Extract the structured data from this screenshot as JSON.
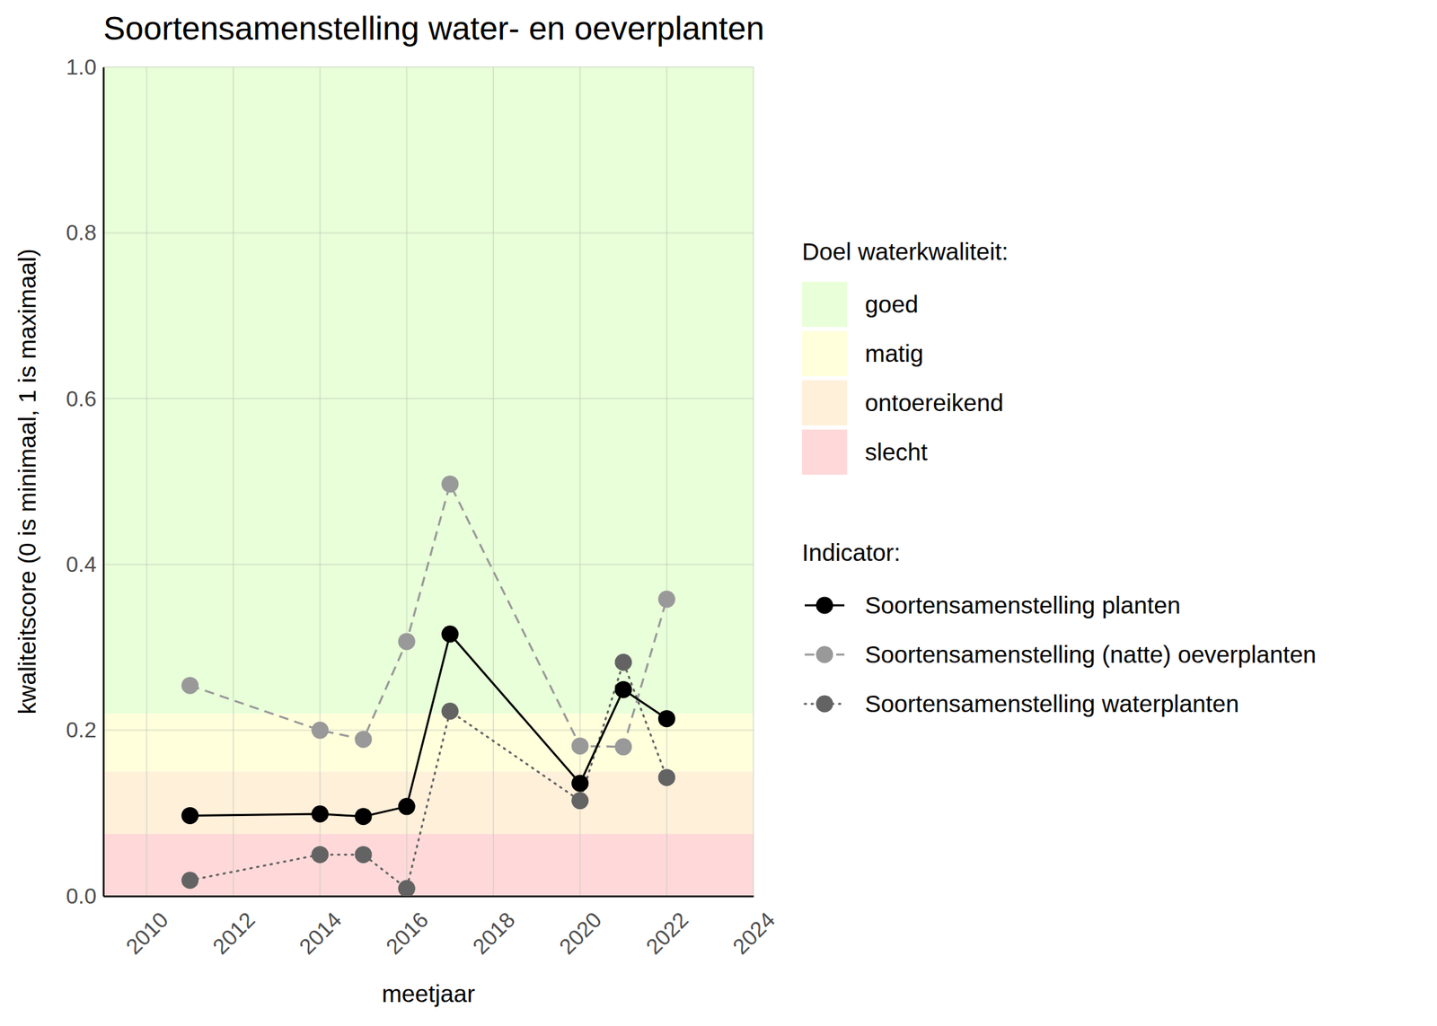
{
  "chart_data": {
    "type": "line",
    "title": "Soortensamenstelling water- en oeverplanten",
    "x_label": "meetjaar",
    "y_label": "kwaliteitscore (0 is minimaal, 1 is maximaal)",
    "x": [
      2011,
      2014,
      2015,
      2016,
      2017,
      2020,
      2021,
      2022
    ],
    "series": [
      {
        "name": "Soortensamenstelling planten",
        "color": "#000000",
        "line_style": "solid",
        "marker": "circle",
        "values": [
          0.097,
          0.099,
          0.096,
          0.108,
          0.316,
          0.136,
          0.249,
          0.214
        ]
      },
      {
        "name": "Soortensamenstelling (natte) oeverplanten",
        "color": "#999999",
        "line_style": "dashed",
        "marker": "circle",
        "values": [
          0.254,
          0.2,
          0.189,
          0.307,
          0.497,
          0.181,
          0.18,
          0.358
        ]
      },
      {
        "name": "Soortensamenstelling waterplanten",
        "color": "#636363",
        "line_style": "dotted",
        "marker": "circle",
        "values": [
          0.019,
          0.05,
          0.05,
          0.009,
          0.223,
          0.115,
          0.282,
          0.143
        ]
      }
    ],
    "legend_title": "Indicator:",
    "band_legend_title": "Doel waterkwaliteit:",
    "bands": [
      {
        "name": "goed",
        "color": "#e8ffd9",
        "from": 0.22,
        "to": 1.0
      },
      {
        "name": "matig",
        "color": "#ffffdc",
        "from": 0.15,
        "to": 0.22
      },
      {
        "name": "ontoereikend",
        "color": "#fff0da",
        "from": 0.075,
        "to": 0.15
      },
      {
        "name": "slecht",
        "color": "#ffd9d9",
        "from": 0,
        "to": 0.075
      }
    ],
    "xlim": [
      2009,
      2024
    ],
    "xticks": [
      2010,
      2012,
      2014,
      2016,
      2018,
      2020,
      2022,
      2024
    ],
    "ylim": [
      0,
      1
    ],
    "yticks": [
      {
        "value": 0,
        "label": "0.0"
      },
      0.2,
      0.4,
      0.6,
      0.8,
      {
        "value": 1,
        "label": "1.0"
      }
    ],
    "grid": true,
    "legend": "right"
  }
}
